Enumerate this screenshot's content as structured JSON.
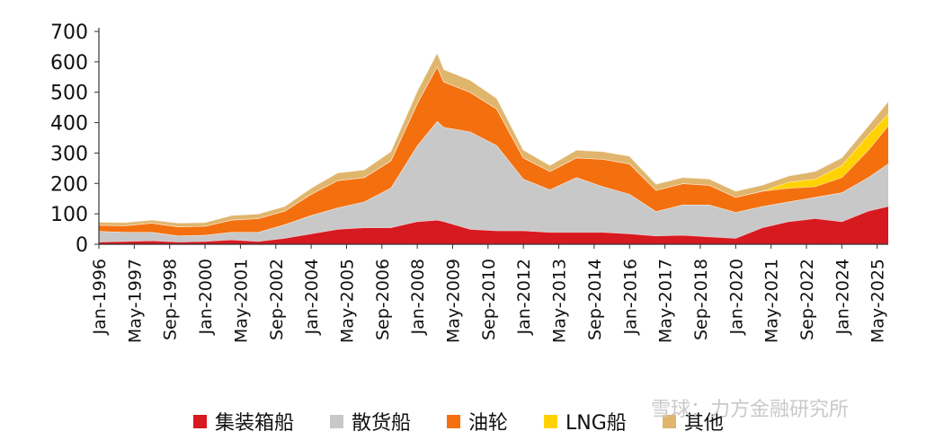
{
  "chart_data": {
    "type": "area",
    "stacked": true,
    "title": "",
    "xlabel": "",
    "ylabel": "",
    "ylim": [
      0,
      700
    ],
    "yticks": [
      0,
      100,
      200,
      300,
      400,
      500,
      600,
      700
    ],
    "x_tick_labels": [
      "Jan-1996",
      "May-1997",
      "Sep-1998",
      "Jan-2000",
      "May-2001",
      "Sep-2002",
      "Jan-2004",
      "May-2005",
      "Sep-2006",
      "Jan-2008",
      "May-2009",
      "Sep-2010",
      "Jan-2012",
      "May-2013",
      "Sep-2014",
      "Jan-2016",
      "May-2017",
      "Sep-2018",
      "Jan-2020",
      "May-2021",
      "Sep-2022",
      "Jan-2024",
      "May-2025"
    ],
    "x": [
      "Jan-1996",
      "Jan-1997",
      "Jan-1998",
      "Jan-1999",
      "Jan-2000",
      "Jan-2001",
      "Jan-2002",
      "Jan-2003",
      "Jan-2004",
      "Jan-2005",
      "Jan-2006",
      "Jan-2007",
      "Jan-2008",
      "Oct-2008",
      "Jan-2009",
      "Jan-2010",
      "Jan-2011",
      "Jan-2012",
      "Jan-2013",
      "Jan-2014",
      "Jan-2015",
      "Jan-2016",
      "Jan-2017",
      "Jan-2018",
      "Jan-2019",
      "Jan-2020",
      "Jan-2021",
      "Jan-2022",
      "Jan-2023",
      "Jan-2024",
      "Jan-2025",
      "Oct-2025"
    ],
    "series": [
      {
        "name": "集装箱船",
        "color": "#d71920",
        "values": [
          8,
          10,
          12,
          8,
          10,
          15,
          10,
          20,
          35,
          50,
          55,
          55,
          75,
          80,
          75,
          50,
          45,
          45,
          40,
          40,
          40,
          35,
          28,
          30,
          25,
          20,
          55,
          75,
          85,
          75,
          110,
          125
        ]
      },
      {
        "name": "散货船",
        "color": "#c8c8c8",
        "values": [
          35,
          30,
          28,
          20,
          20,
          25,
          30,
          45,
          60,
          70,
          85,
          130,
          250,
          325,
          310,
          320,
          280,
          170,
          140,
          180,
          150,
          130,
          80,
          100,
          105,
          85,
          70,
          65,
          70,
          95,
          110,
          140
        ]
      },
      {
        "name": "油轮",
        "color": "#f4700f",
        "values": [
          20,
          22,
          30,
          30,
          30,
          40,
          45,
          45,
          70,
          90,
          80,
          90,
          140,
          180,
          150,
          130,
          120,
          70,
          60,
          65,
          90,
          100,
          70,
          70,
          65,
          50,
          50,
          45,
          35,
          50,
          90,
          125
        ]
      },
      {
        "name": "LNG船",
        "color": "#ffd200",
        "values": [
          0,
          0,
          0,
          0,
          0,
          0,
          0,
          0,
          0,
          0,
          0,
          0,
          0,
          0,
          0,
          0,
          0,
          0,
          0,
          0,
          0,
          0,
          0,
          0,
          0,
          0,
          0,
          20,
          25,
          40,
          50,
          40
        ]
      },
      {
        "name": "其他",
        "color": "#e0b56c",
        "values": [
          10,
          10,
          10,
          12,
          12,
          15,
          15,
          15,
          20,
          25,
          25,
          30,
          40,
          45,
          40,
          40,
          35,
          25,
          20,
          25,
          25,
          25,
          20,
          20,
          20,
          20,
          20,
          20,
          25,
          25,
          30,
          40
        ]
      }
    ],
    "legend_position": "bottom",
    "grid": false
  },
  "watermark": "雪球：力方金融研究所"
}
